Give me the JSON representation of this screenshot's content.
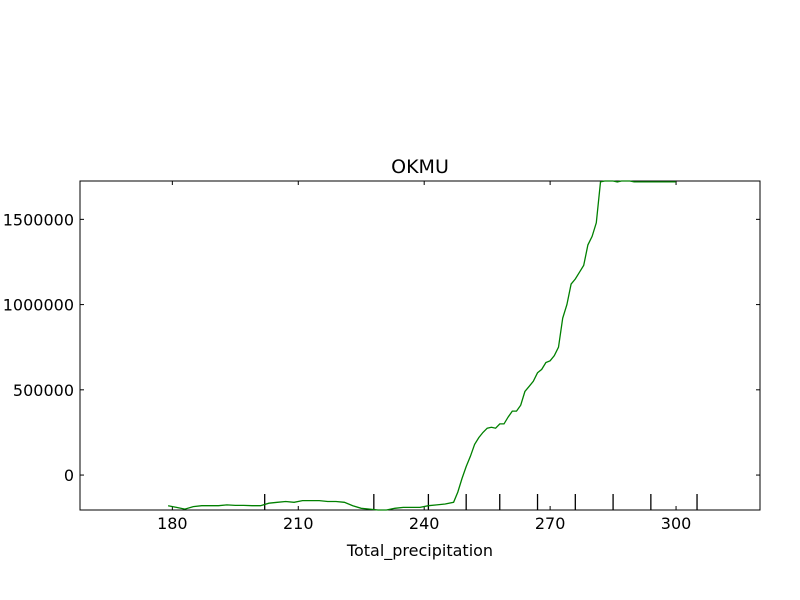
{
  "chart_data": {
    "type": "line",
    "title": "OKMU",
    "xlabel": "Total_precipitation",
    "ylabel": "",
    "xlim": [
      158,
      320
    ],
    "ylim": [
      -205000,
      1725000
    ],
    "xticks": [
      180,
      210,
      240,
      270,
      300
    ],
    "yticks": [
      0,
      500000,
      1000000,
      1500000
    ],
    "xtick_labels": [
      "180",
      "210",
      "240",
      "270",
      "300"
    ],
    "ytick_labels": [
      "0",
      "500000",
      "1000000",
      "1500000"
    ],
    "grid": false,
    "line_color": "#008000",
    "bottom_markers": [
      202,
      228,
      241,
      250,
      258,
      267,
      276,
      285,
      294,
      305
    ],
    "series": [
      {
        "name": "",
        "x": [
          179,
          181,
          183,
          185,
          187,
          189,
          191,
          193,
          195,
          197,
          199,
          201,
          203,
          205,
          207,
          209,
          211,
          213,
          215,
          217,
          219,
          221,
          223,
          225,
          227,
          229,
          231,
          233,
          235,
          237,
          239,
          241,
          243,
          245,
          247,
          248,
          249,
          250,
          251,
          252,
          253,
          254,
          255,
          256,
          257,
          258,
          259,
          260,
          261,
          262,
          263,
          264,
          265,
          266,
          267,
          268,
          269,
          270,
          271,
          272,
          273,
          274,
          275,
          276,
          277,
          278,
          279,
          280,
          281,
          282,
          283,
          284,
          285,
          286,
          287,
          288,
          289,
          290,
          292,
          294,
          296,
          298,
          300
        ],
        "y": [
          -180000,
          -190000,
          -200000,
          -185000,
          -180000,
          -180000,
          -180000,
          -175000,
          -178000,
          -178000,
          -180000,
          -180000,
          -165000,
          -160000,
          -155000,
          -160000,
          -150000,
          -150000,
          -150000,
          -155000,
          -155000,
          -160000,
          -180000,
          -195000,
          -200000,
          -205000,
          -205000,
          -195000,
          -190000,
          -190000,
          -190000,
          -180000,
          -175000,
          -170000,
          -160000,
          -100000,
          -20000,
          50000,
          110000,
          180000,
          220000,
          250000,
          275000,
          280000,
          275000,
          300000,
          300000,
          340000,
          375000,
          375000,
          410000,
          490000,
          520000,
          550000,
          600000,
          620000,
          660000,
          670000,
          700000,
          750000,
          920000,
          1000000,
          1120000,
          1150000,
          1190000,
          1230000,
          1350000,
          1400000,
          1480000,
          1720000,
          1730000,
          1730000,
          1725000,
          1720000,
          1725000,
          1730000,
          1725000,
          1720000,
          1720000,
          1720000,
          1720000,
          1720000,
          1720000
        ]
      }
    ]
  }
}
